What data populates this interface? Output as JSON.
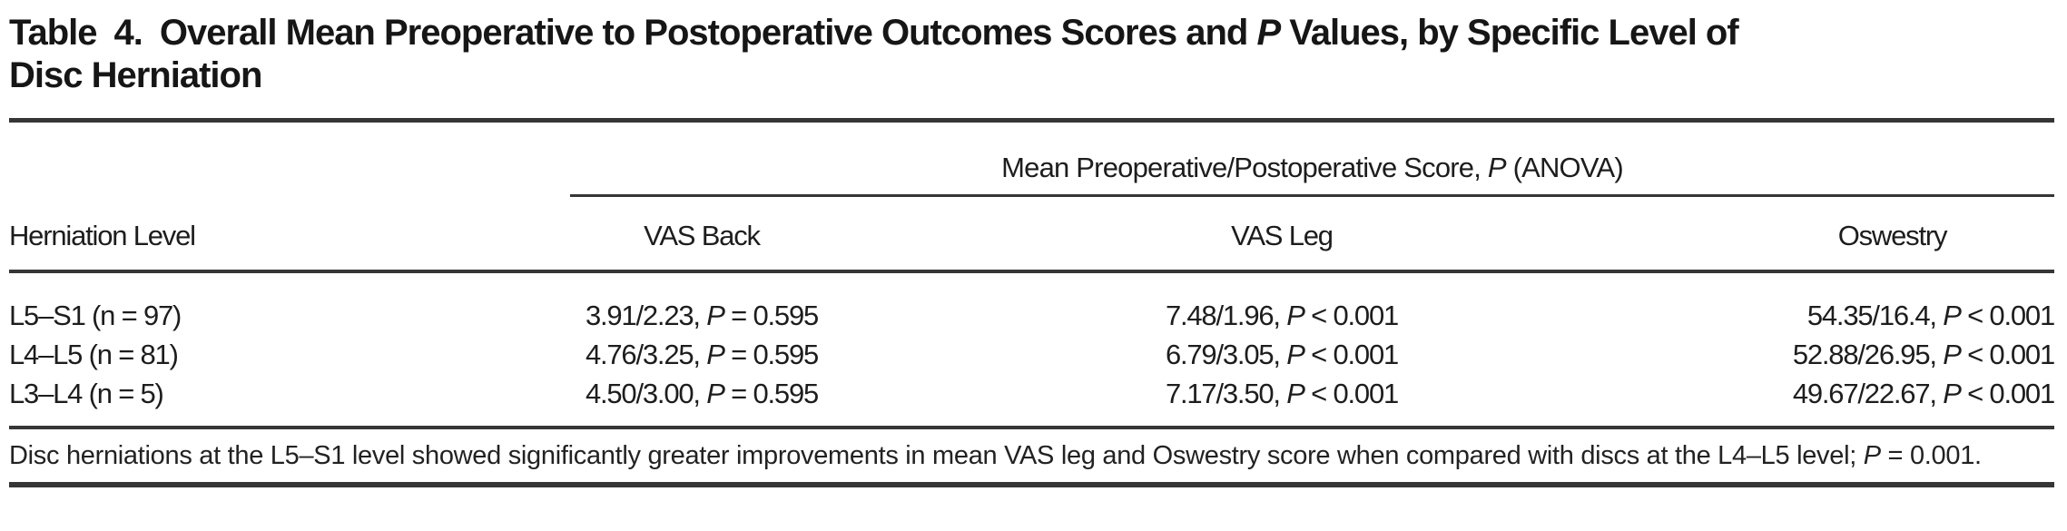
{
  "title": {
    "line1": "Table 4. Overall Mean Preoperative to Postoperative Outcomes Scores and |P| Values, by Specific Level of",
    "line2": "Disc Herniation"
  },
  "table": {
    "spanner_header": "Mean Preoperative/Postoperative Score, |P| (ANOVA)",
    "columns": [
      "Herniation Level",
      "VAS Back",
      "VAS Leg",
      "Oswestry"
    ],
    "rows": [
      {
        "level": "L5–S1 (n = 97)",
        "vas_back": "3.91/2.23, |P| = 0.595",
        "vas_leg": "7.48/1.96, |P| < 0.001",
        "oswestry": "54.35/16.4, |P| < 0.001"
      },
      {
        "level": "L4–L5 (n = 81)",
        "vas_back": "4.76/3.25, |P| = 0.595",
        "vas_leg": "6.79/3.05, |P| < 0.001",
        "oswestry": "52.88/26.95, |P| < 0.001"
      },
      {
        "level": "L3–L4 (n = 5)",
        "vas_back": "4.50/3.00, |P| = 0.595",
        "vas_leg": "7.17/3.50, |P| < 0.001",
        "oswestry": "49.67/22.67, |P| < 0.001"
      }
    ]
  },
  "footnote": "Disc herniations at the L5–S1 level showed significantly greater improvements in mean VAS leg and Oswestry score when compared with discs at the L4–L5 level; |P| = 0.001.",
  "colors": {
    "background": "#ffffff",
    "text": "#1d1d1d",
    "rule": "#363636"
  }
}
